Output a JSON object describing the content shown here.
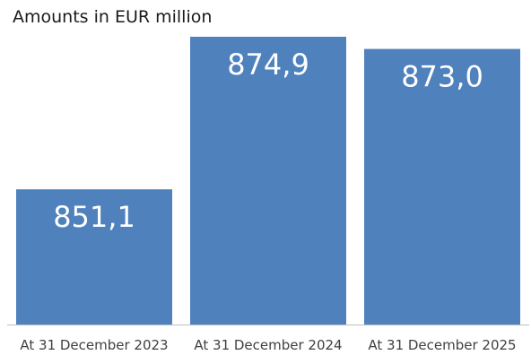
{
  "chart_data": {
    "type": "bar",
    "title": "Amounts in EUR million",
    "categories": [
      "At 31 December 2023",
      "At 31 December 2024",
      "At 31 December 2025"
    ],
    "values": [
      851.1,
      874.9,
      873.0
    ],
    "data_labels": [
      "851,1",
      "874,9",
      "873,0"
    ],
    "ylim": [
      830,
      878
    ],
    "xlabel": "",
    "ylabel": "",
    "grid": false,
    "legend": "none",
    "colors": {
      "bar": "#4f81bd",
      "bar_label": "#ffffff",
      "axis": "#bfbfbf",
      "tick_label": "#404040",
      "title": "#1a1a1a"
    }
  }
}
